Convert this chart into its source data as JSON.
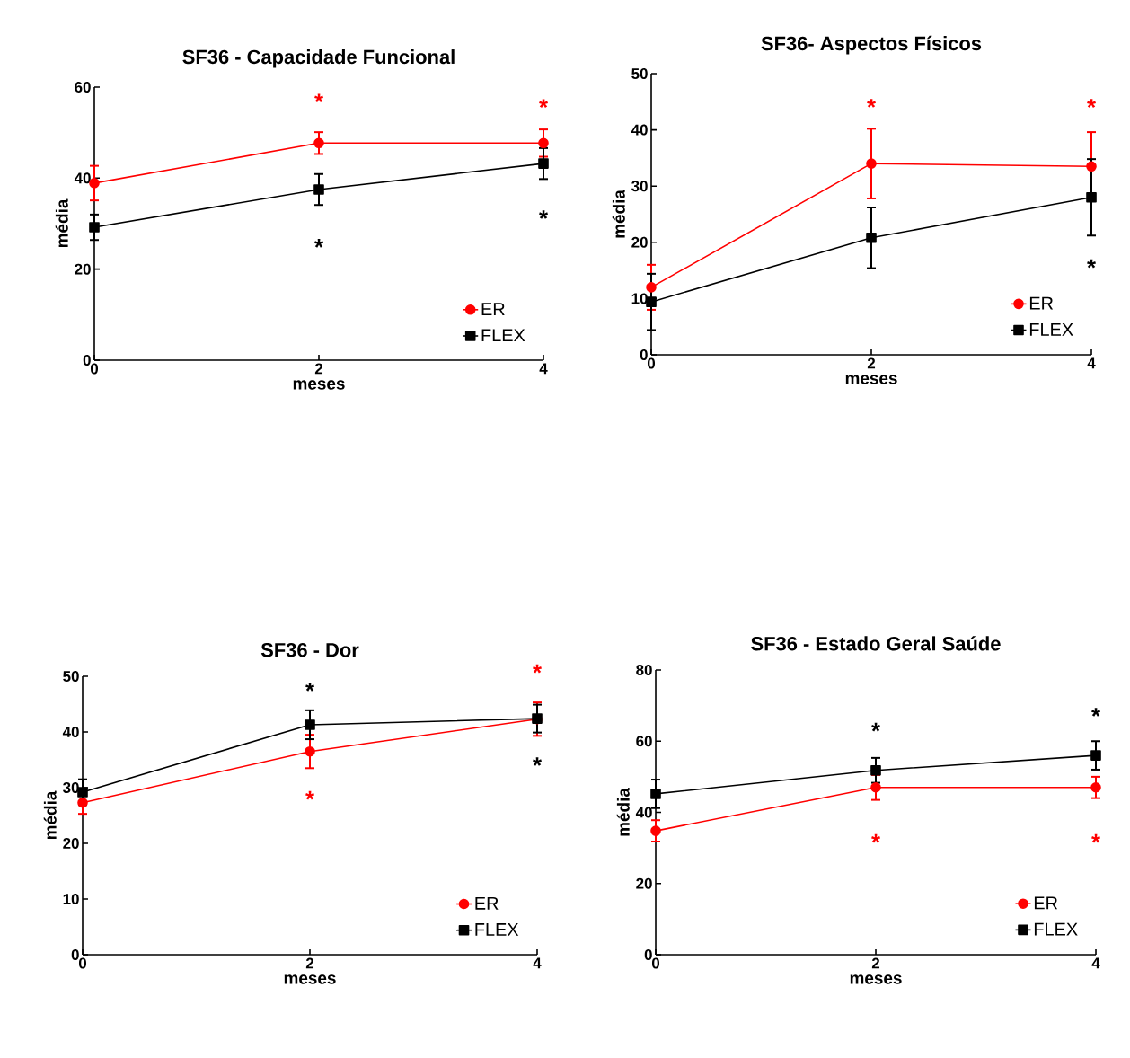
{
  "chart_data": [
    {
      "type": "line",
      "title": "SF36 - Capacidade Funcional",
      "xlabel": "meses",
      "ylabel": "média",
      "x": [
        0,
        2,
        4
      ],
      "xlim": [
        0,
        4
      ],
      "xticks": [
        0,
        2,
        4
      ],
      "ylim": [
        0,
        60
      ],
      "yticks": [
        0,
        20,
        40,
        60
      ],
      "legend": "bottom right",
      "grid": false,
      "series": [
        {
          "name": "ER",
          "color": "#ff0000",
          "marker": "circle",
          "values": [
            38.9,
            47.7,
            47.7
          ],
          "errors": [
            3.8,
            2.4,
            3
          ]
        },
        {
          "name": "FLEX",
          "color": "#000000",
          "marker": "square",
          "values": [
            29.2,
            37.5,
            43.2
          ],
          "errors": [
            2.8,
            3.4,
            3.4
          ]
        }
      ],
      "annotations": [
        "*",
        "*",
        "*",
        "*"
      ]
    },
    {
      "type": "line",
      "title": "SF36- Aspectos Físicos",
      "xlabel": "meses",
      "ylabel": "média",
      "x": [
        0,
        2,
        4
      ],
      "xlim": [
        0,
        4
      ],
      "xticks": [
        0,
        2,
        4
      ],
      "ylim": [
        0,
        50
      ],
      "yticks": [
        0,
        10,
        20,
        30,
        40,
        50
      ],
      "legend": "bottom right",
      "grid": false,
      "series": [
        {
          "name": "ER",
          "color": "#ff0000",
          "marker": "circle",
          "values": [
            12,
            34,
            33.5
          ],
          "errors": [
            4,
            6.2,
            6.1
          ]
        },
        {
          "name": "FLEX",
          "color": "#000000",
          "marker": "square",
          "values": [
            9.4,
            20.8,
            28
          ],
          "errors": [
            5,
            5.4,
            6.8
          ]
        }
      ],
      "annotations": [
        "*",
        "*",
        "*"
      ]
    },
    {
      "type": "line",
      "title": "SF36 - Dor",
      "xlabel": "meses",
      "ylabel": "média",
      "x": [
        0,
        2,
        4
      ],
      "xlim": [
        0,
        4
      ],
      "xticks": [
        0,
        2,
        4
      ],
      "ylim": [
        0,
        50
      ],
      "yticks": [
        0,
        10,
        20,
        30,
        40,
        50
      ],
      "legend": "bottom right",
      "grid": false,
      "series": [
        {
          "name": "ER",
          "color": "#ff0000",
          "marker": "circle",
          "values": [
            27.3,
            36.5,
            42.3
          ],
          "errors": [
            2,
            3,
            3
          ]
        },
        {
          "name": "FLEX",
          "color": "#000000",
          "marker": "square",
          "values": [
            29.2,
            41.3,
            42.4
          ],
          "errors": [
            2.3,
            2.6,
            2.5
          ]
        }
      ],
      "annotations": [
        "*",
        "*",
        "*",
        "*"
      ]
    },
    {
      "type": "line",
      "title": "SF36 - Estado Geral Saúde",
      "xlabel": "meses",
      "ylabel": "média",
      "x": [
        0,
        2,
        4
      ],
      "xlim": [
        0,
        4
      ],
      "xticks": [
        0,
        2,
        4
      ],
      "ylim": [
        0,
        80
      ],
      "yticks": [
        0,
        20,
        40,
        60,
        80
      ],
      "legend": "bottom right",
      "grid": false,
      "series": [
        {
          "name": "ER",
          "color": "#ff0000",
          "marker": "circle",
          "values": [
            34.8,
            47,
            47
          ],
          "errors": [
            3,
            3.5,
            3
          ]
        },
        {
          "name": "FLEX",
          "color": "#000000",
          "marker": "square",
          "values": [
            45.2,
            51.8,
            56
          ],
          "errors": [
            4,
            3.5,
            4
          ]
        }
      ],
      "annotations": [
        "*",
        "*",
        "*",
        "*"
      ]
    }
  ]
}
